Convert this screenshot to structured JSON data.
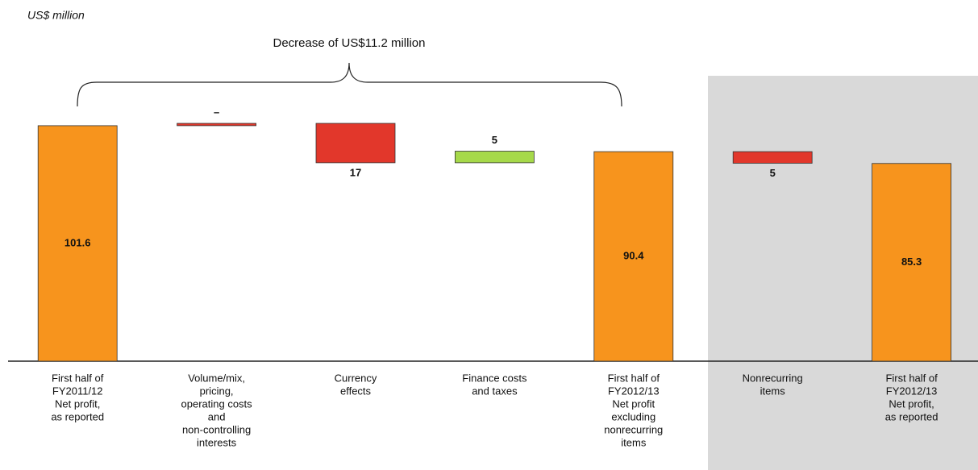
{
  "chart_data": {
    "type": "waterfall",
    "unit_label": "US$ million",
    "annotation": "Decrease of US$11.2 million",
    "categories": [
      [
        "First half of",
        "FY2011/12",
        "Net profit,",
        "as reported"
      ],
      [
        "Volume/mix,",
        "pricing,",
        "operating costs",
        "and",
        "non-controlling",
        "interests"
      ],
      [
        "Currency",
        "effects"
      ],
      [
        "Finance costs",
        "and taxes"
      ],
      [
        "First half of",
        "FY2012/13",
        "Net profit",
        "excluding",
        "nonrecurring",
        "items"
      ],
      [
        "Nonrecurring",
        "items"
      ],
      [
        "First half of",
        "FY2012/13",
        "Net profit,",
        "as reported"
      ]
    ],
    "measure": [
      "total",
      "relative",
      "relative",
      "relative",
      "total",
      "relative",
      "total"
    ],
    "values": [
      101.6,
      1,
      -17,
      5,
      90.4,
      -5,
      85.3
    ],
    "value_labels": [
      "101.6",
      "–",
      "17",
      "5",
      "90.4",
      "5",
      "85.3"
    ],
    "colors": [
      "#f7941d",
      "#e2372b",
      "#e2372b",
      "#a6d94a",
      "#f7941d",
      "#e2372b",
      "#f7941d"
    ],
    "ylim": [
      0,
      120
    ]
  }
}
